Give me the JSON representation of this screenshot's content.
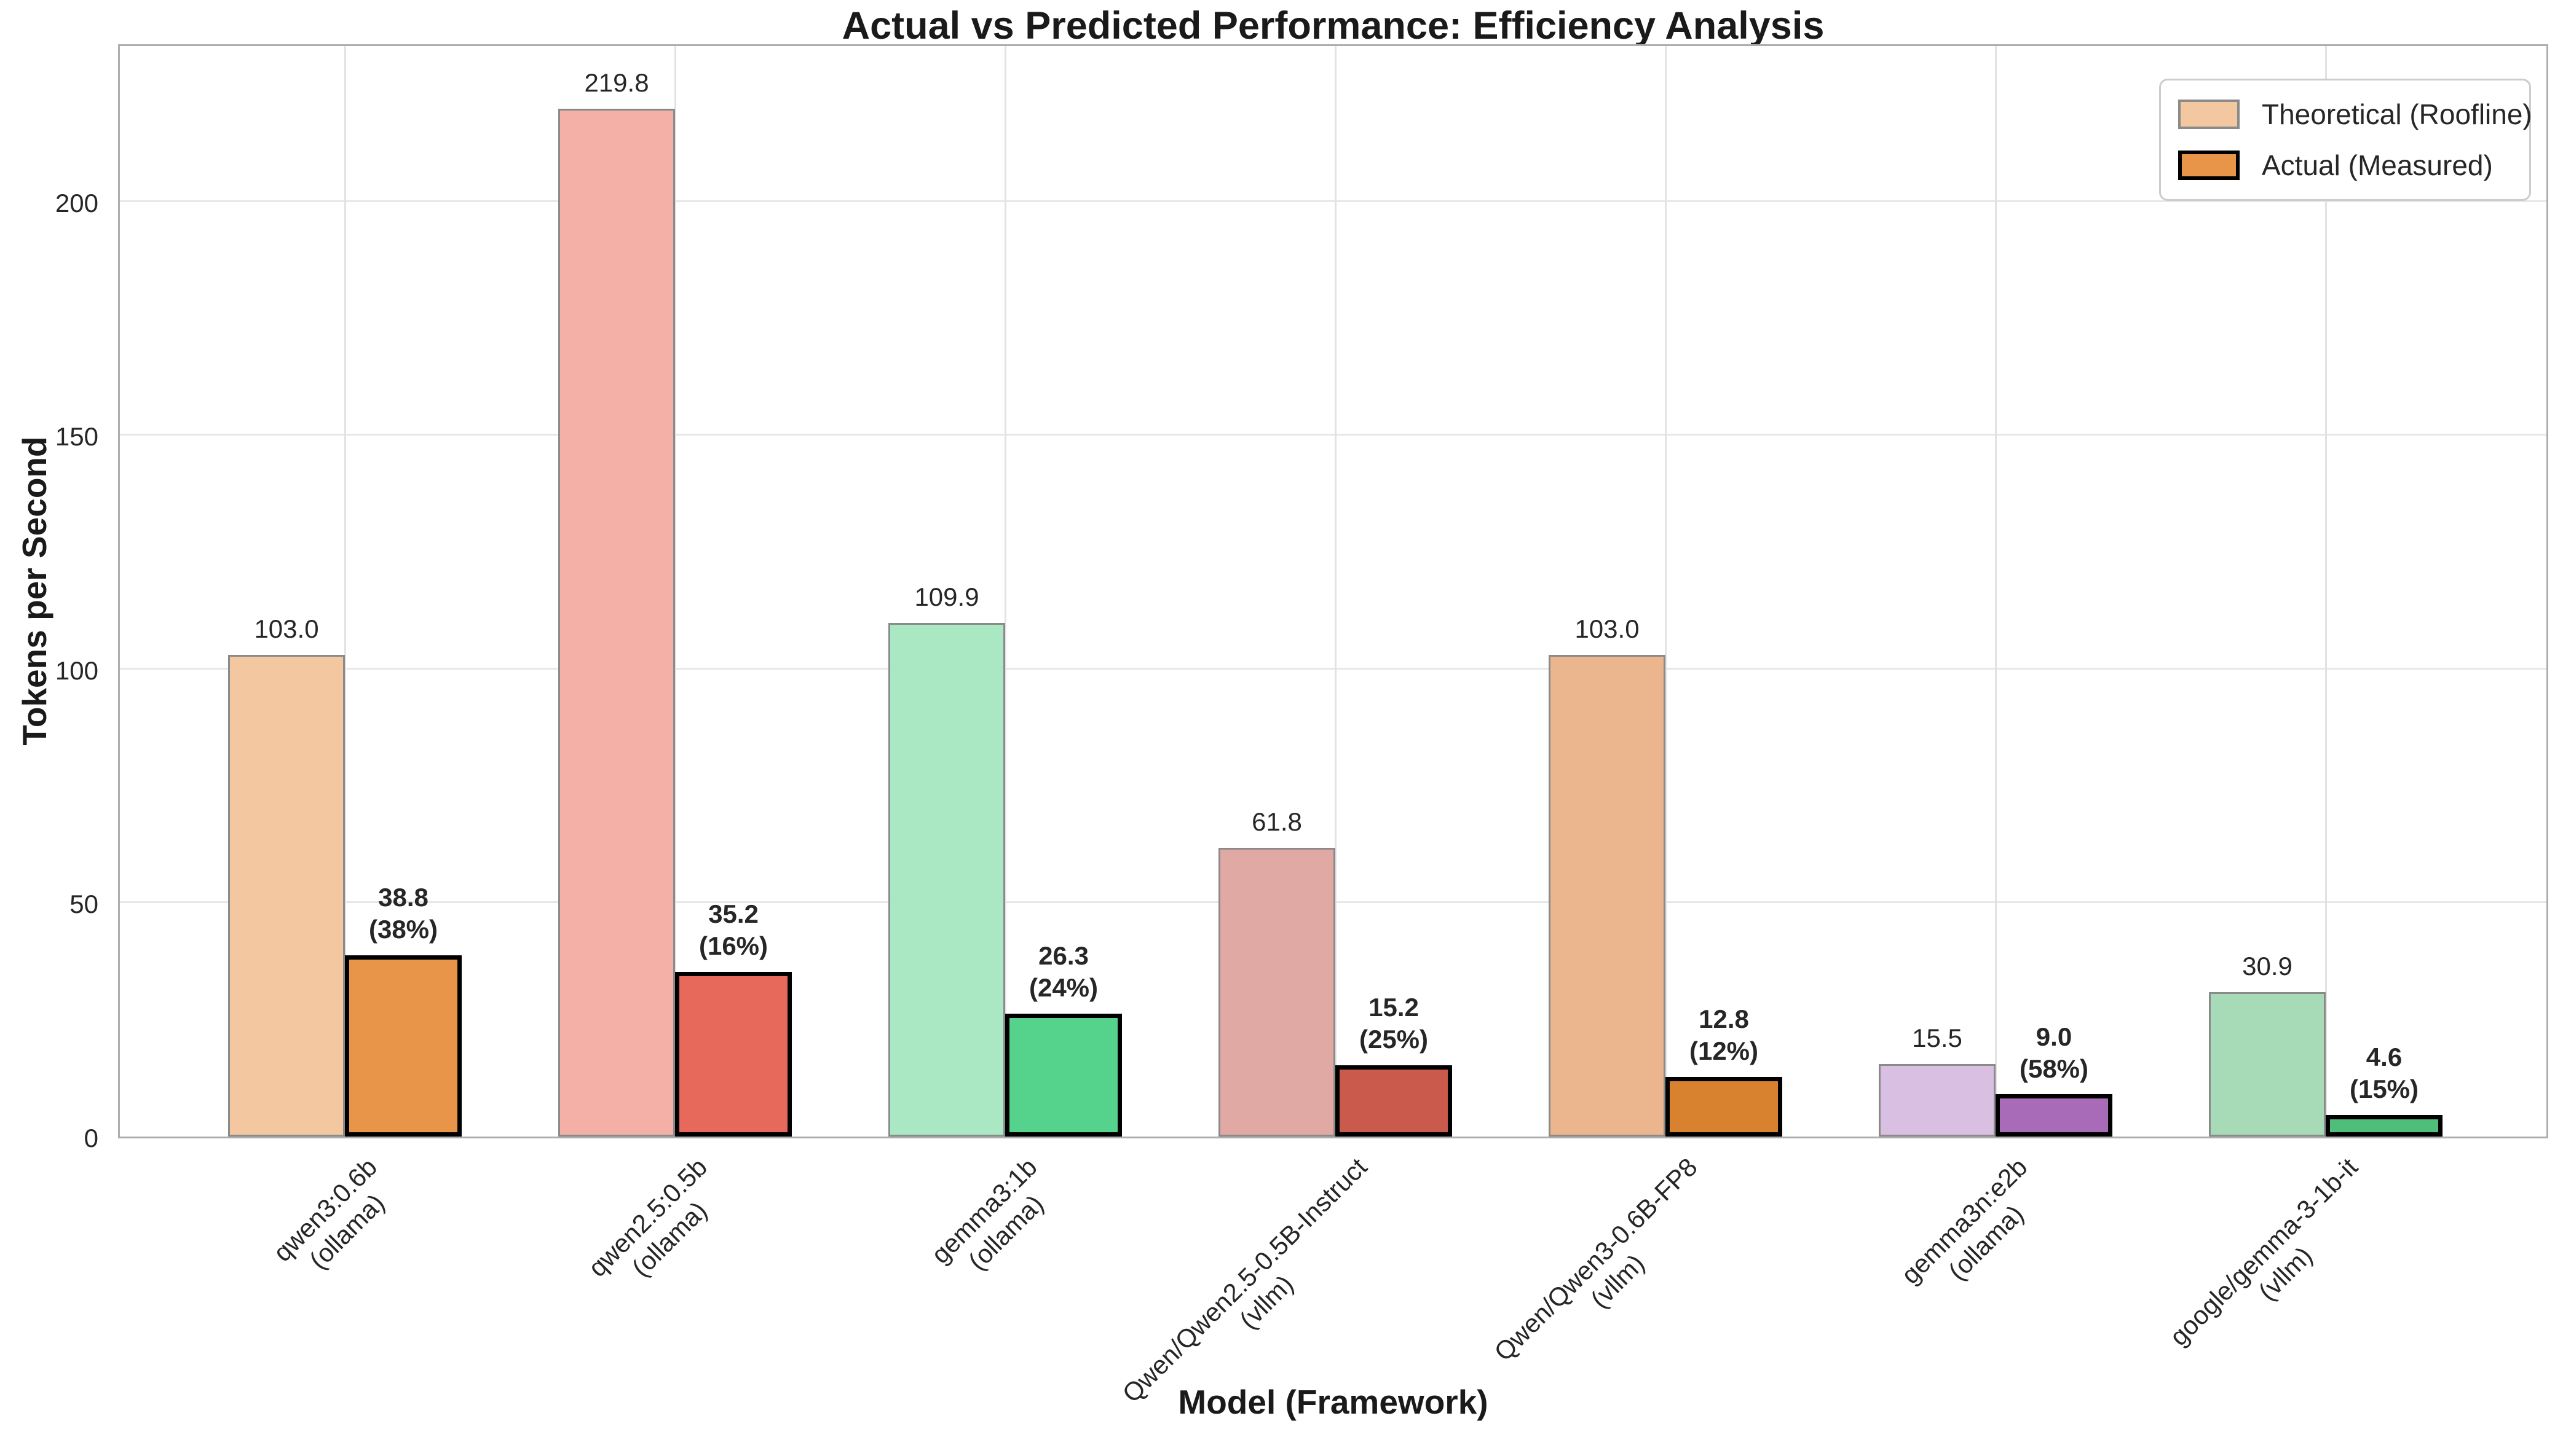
{
  "chart_data": {
    "type": "bar",
    "title": "Actual vs Predicted Performance: Efficiency Analysis",
    "xlabel": "Model (Framework)",
    "ylabel": "Tokens per Second",
    "ylim": [
      0,
      234
    ],
    "yticks": [
      0,
      50,
      100,
      150,
      200
    ],
    "grid": true,
    "legend_position": "upper right",
    "legend": {
      "theoretical_label": "Theoretical (Roofline)",
      "actual_label": "Actual (Measured)",
      "theoretical_swatch_color": "#F3C8A0",
      "actual_swatch_color": "#E8954A"
    },
    "series": [
      {
        "name": "Theoretical (Roofline)",
        "values": [
          103.0,
          219.8,
          109.9,
          61.8,
          103.0,
          15.5,
          30.9
        ]
      },
      {
        "name": "Actual (Measured)",
        "values": [
          38.8,
          35.2,
          26.3,
          15.2,
          12.8,
          9.0,
          4.6
        ]
      }
    ],
    "categories": [
      {
        "model": "qwen3:0.6b",
        "framework": "(ollama)"
      },
      {
        "model": "qwen2.5:0.5b",
        "framework": "(ollama)"
      },
      {
        "model": "gemma3:1b",
        "framework": "(ollama)"
      },
      {
        "model": "Qwen/Qwen2.5-0.5B-Instruct",
        "framework": "(vllm)"
      },
      {
        "model": "Qwen/Qwen3-0.6B-FP8",
        "framework": "(vllm)"
      },
      {
        "model": "gemma3n:e2b",
        "framework": "(ollama)"
      },
      {
        "model": "google/gemma-3-1b-it",
        "framework": "(vllm)"
      }
    ],
    "groups": [
      {
        "theoretical": 103.0,
        "actual": 38.8,
        "theoretical_label": "103.0",
        "actual_label": "38.8",
        "pct_label": "(38%)",
        "actual_color": "#E8954A",
        "theoretical_color": "#F3C8A0"
      },
      {
        "theoretical": 219.8,
        "actual": 35.2,
        "theoretical_label": "219.8",
        "actual_label": "35.2",
        "pct_label": "(16%)",
        "actual_color": "#E6695B",
        "theoretical_color": "#F4AFA7"
      },
      {
        "theoretical": 109.9,
        "actual": 26.3,
        "theoretical_label": "109.9",
        "actual_label": "26.3",
        "pct_label": "(24%)",
        "actual_color": "#55D38C",
        "theoretical_color": "#AAE7C3"
      },
      {
        "theoretical": 61.8,
        "actual": 15.2,
        "theoretical_label": "61.8",
        "actual_label": "15.2",
        "pct_label": "(25%)",
        "actual_color": "#C95A4C",
        "theoretical_color": "#E0A9A3"
      },
      {
        "theoretical": 103.0,
        "actual": 12.8,
        "theoretical_label": "103.0",
        "actual_label": "12.8",
        "pct_label": "(12%)",
        "actual_color": "#D8812F",
        "theoretical_color": "#EBB68D"
      },
      {
        "theoretical": 15.5,
        "actual": 9.0,
        "theoretical_label": "15.5",
        "actual_label": "9.0",
        "pct_label": "(58%)",
        "actual_color": "#A76BB8",
        "theoretical_color": "#D9BFE2"
      },
      {
        "theoretical": 30.9,
        "actual": 4.6,
        "theoretical_label": "30.9",
        "actual_label": "4.6",
        "pct_label": "(15%)",
        "actual_color": "#4FBE7B",
        "theoretical_color": "#A7DAB6"
      }
    ]
  }
}
